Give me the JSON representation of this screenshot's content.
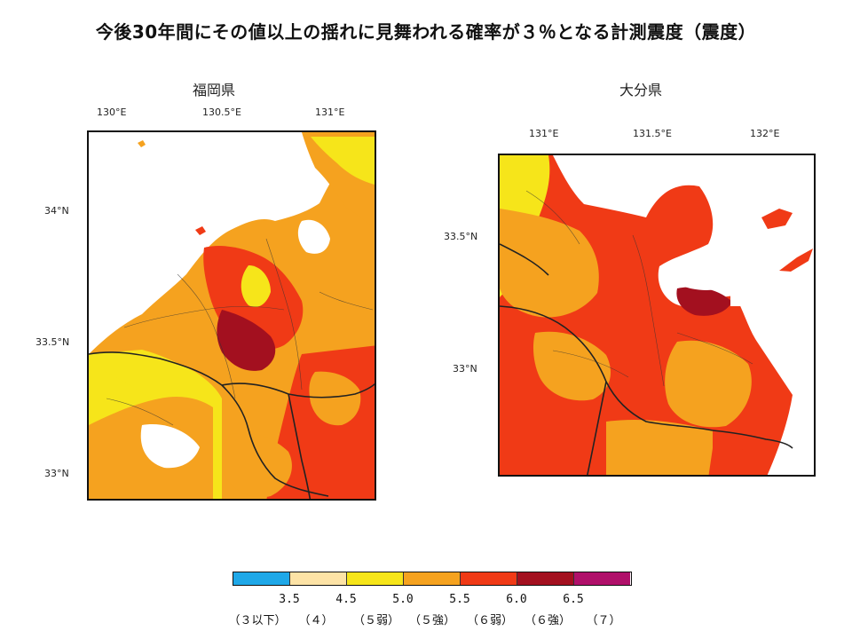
{
  "title": "今後30年間にその値以上の揺れに見舞われる確率が３％となる計測震度（震度）",
  "panels": [
    {
      "name": "福岡県",
      "lon_ticks": [
        "130°E",
        "130.5°E",
        "131°E"
      ],
      "lat_ticks": [
        "34°N",
        "33.5°N",
        "33°N"
      ]
    },
    {
      "name": "大分県",
      "lon_ticks": [
        "131°E",
        "131.5°E",
        "132°E"
      ],
      "lat_ticks": [
        "33.5°N",
        "33°N"
      ]
    }
  ],
  "legend": {
    "ticks": [
      "3.5",
      "4.5",
      "5.0",
      "5.5",
      "6.0",
      "6.5"
    ],
    "classes": [
      "（３以下）",
      "（４）",
      "（５弱）",
      "（５強）",
      "（６弱）",
      "（６強）",
      "（７）"
    ],
    "colors": [
      "#1fa8e8",
      "#fde3a6",
      "#f6e51a",
      "#f5a21f",
      "#f03a16",
      "#a3101f",
      "#b0106a"
    ]
  },
  "colors": {
    "sea": "#ffffff",
    "border": "#222222"
  }
}
